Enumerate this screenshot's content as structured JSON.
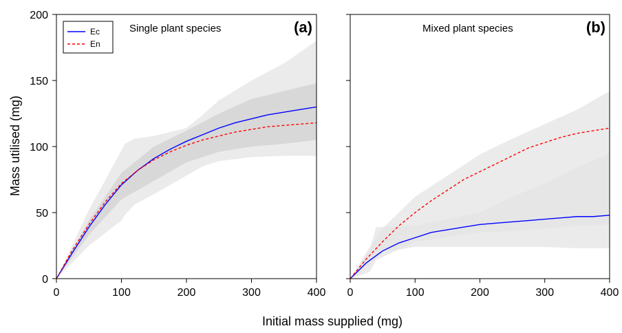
{
  "figure": {
    "xlabel": "Initial mass supplied (mg)",
    "ylabel": "Mass utilised (mg)"
  },
  "chart_data": [
    {
      "type": "line",
      "panel_label": "(a)",
      "title": "Single plant species",
      "xlim": [
        0,
        400
      ],
      "ylim": [
        0,
        200
      ],
      "x_ticks": [
        0,
        100,
        200,
        300,
        400
      ],
      "y_ticks": [
        0,
        50,
        100,
        150,
        200
      ],
      "legend": {
        "placement": "top-left",
        "entries": [
          "Ec",
          "En"
        ]
      },
      "grid": false,
      "x": [
        0,
        25,
        50,
        75,
        100,
        125,
        150,
        175,
        200,
        225,
        250,
        275,
        300,
        325,
        350,
        375,
        400
      ],
      "series": [
        {
          "name": "Ec",
          "color": "#0000ff",
          "style": "solid",
          "values": [
            0,
            20,
            39,
            56,
            71,
            82,
            91,
            98,
            104,
            109,
            114,
            118,
            121,
            124,
            126,
            128,
            130
          ]
        },
        {
          "name": "En",
          "color": "#ff0000",
          "style": "dashed",
          "values": [
            0,
            22,
            41,
            58,
            72,
            82,
            90,
            96,
            101,
            105,
            108,
            111,
            113,
            115,
            116,
            117,
            118
          ]
        }
      ],
      "bands": [
        {
          "color": "#e4e4e4",
          "x": [
            0,
            50,
            100,
            105,
            120,
            150,
            200,
            225,
            250,
            300,
            350,
            400
          ],
          "upper": [
            0,
            52,
            97,
            102,
            106,
            108,
            114,
            124,
            135,
            150,
            163,
            180
          ],
          "lower": [
            0,
            25,
            44,
            48,
            56,
            64,
            78,
            85,
            89,
            92,
            93,
            93
          ]
        },
        {
          "color": "#d2d2d2",
          "x": [
            0,
            50,
            100,
            150,
            200,
            250,
            300,
            350,
            400
          ],
          "upper": [
            0,
            44,
            80,
            100,
            112,
            125,
            136,
            142,
            148
          ],
          "lower": [
            0,
            33,
            60,
            74,
            88,
            96,
            100,
            102,
            105
          ]
        }
      ]
    },
    {
      "type": "line",
      "panel_label": "(b)",
      "title": "Mixed plant species",
      "xlim": [
        0,
        400
      ],
      "ylim": [
        0,
        200
      ],
      "x_ticks": [
        0,
        100,
        200,
        300,
        400
      ],
      "y_ticks": [
        0,
        50,
        100,
        150,
        200
      ],
      "grid": false,
      "x": [
        0,
        25,
        50,
        75,
        100,
        125,
        150,
        175,
        200,
        225,
        250,
        275,
        300,
        325,
        350,
        375,
        400
      ],
      "series": [
        {
          "name": "Ec",
          "color": "#0000ff",
          "style": "solid",
          "values": [
            0,
            12,
            21,
            27,
            31,
            35,
            37,
            39,
            41,
            42,
            43,
            44,
            45,
            46,
            47,
            47,
            48
          ]
        },
        {
          "name": "En",
          "color": "#ff0000",
          "style": "dashed",
          "values": [
            0,
            15,
            28,
            40,
            50,
            59,
            67,
            75,
            81,
            87,
            93,
            99,
            103,
            107,
            110,
            112,
            114
          ]
        }
      ],
      "bands": [
        {
          "color": "#e4e4e4",
          "x": [
            0,
            25,
            50,
            100,
            150,
            200,
            250,
            300,
            350,
            400
          ],
          "upper": [
            0,
            20,
            38,
            62,
            78,
            94,
            106,
            117,
            128,
            142
          ],
          "lower": [
            0,
            8,
            20,
            24,
            24,
            24,
            24,
            24,
            23,
            23
          ]
        },
        {
          "color": "#e4e4e4",
          "x": [
            0,
            30,
            40,
            100,
            200,
            250,
            300,
            350,
            400
          ],
          "upper": [
            0,
            22,
            39,
            40,
            50,
            62,
            72,
            84,
            95
          ],
          "lower": [
            0,
            5,
            14,
            28,
            35,
            36,
            38,
            40,
            41
          ]
        }
      ]
    }
  ]
}
